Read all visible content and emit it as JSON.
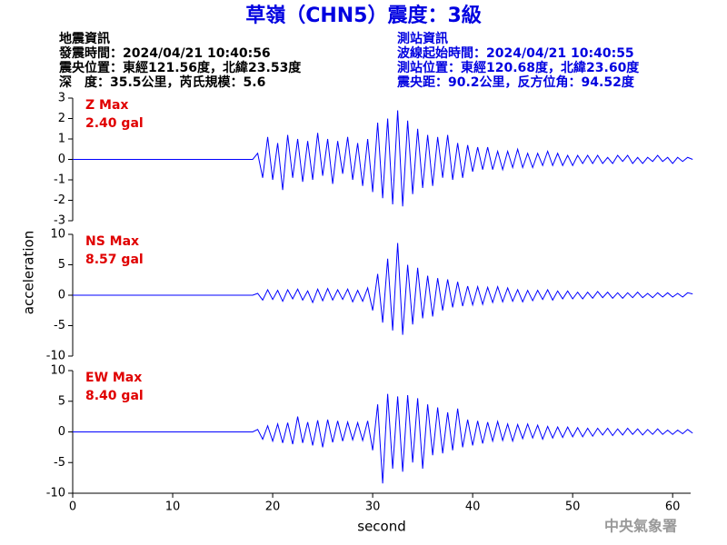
{
  "title": "草嶺（CHN5）震度：3級",
  "earthquake_info": [
    "地震資訊",
    "發震時間：2024/04/21 10:40:56",
    "震央位置：東經121.56度，北緯23.53度",
    "深　度：35.5公里，芮氏規模：5.6"
  ],
  "station_info": [
    "測站資訊",
    "波線起始時間：2024/04/21 10:40:55",
    "測站位置：東經120.68度，北緯23.60度",
    "震央距：90.2公里，反方位角：94.52度"
  ],
  "footer": "中央氣象署",
  "chart_data": [
    {
      "type": "line",
      "annotations": [
        "Z Max",
        "2.40 gal"
      ],
      "color": "#0000ff",
      "annotation_color": "#e00000",
      "xlim": [
        0,
        61.8
      ],
      "ylim": [
        -3,
        3
      ],
      "yticks": [
        -3,
        -2,
        -1,
        0,
        1,
        2,
        3
      ],
      "x": [
        0,
        18,
        18.5,
        19,
        19.5,
        20,
        20.5,
        21,
        21.5,
        22,
        22.5,
        23,
        23.5,
        24,
        24.5,
        25,
        25.5,
        26,
        26.5,
        27,
        27.5,
        28,
        28.5,
        29,
        29.5,
        30,
        30.5,
        31,
        31.5,
        32,
        32.5,
        33,
        33.5,
        34,
        34.5,
        35,
        35.5,
        36,
        36.5,
        37,
        37.5,
        38,
        38.5,
        39,
        39.5,
        40,
        40.5,
        41,
        41.5,
        42,
        42.5,
        43,
        43.5,
        44,
        44.5,
        45,
        45.5,
        46,
        46.5,
        47,
        47.5,
        48,
        48.5,
        49,
        49.5,
        50,
        50.5,
        51,
        51.5,
        52,
        52.5,
        53,
        53.5,
        54,
        54.5,
        55,
        55.5,
        56,
        56.5,
        57,
        57.5,
        58,
        58.5,
        59,
        59.5,
        60,
        60.5,
        61,
        61.5,
        62
      ],
      "values": [
        0,
        0,
        0.3,
        -0.9,
        1.1,
        -1.0,
        0.8,
        -1.5,
        1.2,
        -0.9,
        1.0,
        -1.1,
        0.9,
        -1.0,
        1.3,
        -0.8,
        1.0,
        -1.2,
        0.9,
        -0.7,
        1.1,
        -1.0,
        0.8,
        -1.3,
        1.0,
        -1.6,
        1.8,
        -1.9,
        2.0,
        -2.2,
        2.4,
        -2.3,
        1.9,
        -1.7,
        1.5,
        -1.4,
        1.2,
        -1.3,
        1.1,
        -0.9,
        1.2,
        -1.0,
        0.8,
        -0.9,
        0.7,
        -0.6,
        0.6,
        -0.5,
        0.6,
        -0.5,
        0.4,
        -0.5,
        0.4,
        -0.4,
        0.5,
        -0.4,
        0.3,
        -0.4,
        0.3,
        -0.3,
        0.4,
        -0.3,
        0.3,
        -0.3,
        0.2,
        -0.3,
        0.2,
        -0.2,
        0.2,
        -0.2,
        0.2,
        -0.2,
        0.1,
        -0.2,
        0.2,
        -0.1,
        0.2,
        -0.2,
        0.1,
        -0.2,
        0.1,
        -0.1,
        0.2,
        -0.1,
        0.1,
        -0.2,
        0.1,
        -0.1,
        0.1,
        0.0
      ]
    },
    {
      "type": "line",
      "annotations": [
        "NS Max",
        "8.57 gal"
      ],
      "color": "#0000ff",
      "annotation_color": "#e00000",
      "ylabel": "acceleration",
      "xlim": [
        0,
        61.8
      ],
      "ylim": [
        -10,
        10
      ],
      "yticks": [
        -10,
        -5,
        0,
        5,
        10
      ],
      "x": [
        0,
        18,
        18.5,
        19,
        19.5,
        20,
        20.5,
        21,
        21.5,
        22,
        22.5,
        23,
        23.5,
        24,
        24.5,
        25,
        25.5,
        26,
        26.5,
        27,
        27.5,
        28,
        28.5,
        29,
        29.5,
        30,
        30.5,
        31,
        31.5,
        32,
        32.5,
        33,
        33.5,
        34,
        34.5,
        35,
        35.5,
        36,
        36.5,
        37,
        37.5,
        38,
        38.5,
        39,
        39.5,
        40,
        40.5,
        41,
        41.5,
        42,
        42.5,
        43,
        43.5,
        44,
        44.5,
        45,
        45.5,
        46,
        46.5,
        47,
        47.5,
        48,
        48.5,
        49,
        49.5,
        50,
        50.5,
        51,
        51.5,
        52,
        52.5,
        53,
        53.5,
        54,
        54.5,
        55,
        55.5,
        56,
        56.5,
        57,
        57.5,
        58,
        58.5,
        59,
        59.5,
        60,
        60.5,
        61,
        61.5,
        62
      ],
      "values": [
        0,
        0,
        0.3,
        -0.8,
        0.9,
        -0.7,
        0.8,
        -1.0,
        0.9,
        -0.6,
        1.0,
        -0.8,
        0.7,
        -1.2,
        1.0,
        -0.9,
        1.1,
        -0.8,
        0.9,
        -0.7,
        1.0,
        -1.1,
        0.8,
        -1.0,
        1.2,
        -2.5,
        3.5,
        -4.5,
        6.0,
        -5.8,
        8.57,
        -6.5,
        5.0,
        -4.8,
        4.5,
        -3.8,
        3.2,
        -3.5,
        2.8,
        -2.5,
        2.6,
        -2.0,
        2.2,
        -1.8,
        1.5,
        -1.6,
        1.4,
        -1.5,
        1.3,
        -1.2,
        1.4,
        -1.1,
        1.2,
        -1.0,
        0.9,
        -1.1,
        0.8,
        -0.9,
        0.8,
        -0.7,
        0.9,
        -0.8,
        0.7,
        -0.6,
        0.7,
        -0.6,
        0.5,
        -0.6,
        0.5,
        -0.5,
        0.6,
        -0.4,
        0.5,
        -0.5,
        0.4,
        -0.5,
        0.4,
        -0.4,
        0.5,
        -0.4,
        0.3,
        -0.4,
        0.4,
        -0.3,
        0.4,
        -0.3,
        0.3,
        -0.3,
        0.4,
        0.2
      ]
    },
    {
      "type": "line",
      "annotations": [
        "EW Max",
        "8.40 gal"
      ],
      "color": "#0000ff",
      "annotation_color": "#e00000",
      "xlabel": "second",
      "xlim": [
        0,
        61.8
      ],
      "ylim": [
        -10,
        10
      ],
      "yticks": [
        -10,
        -5,
        0,
        5,
        10
      ],
      "xticks": [
        0,
        10,
        20,
        30,
        40,
        50,
        60
      ],
      "x": [
        0,
        18,
        18.5,
        19,
        19.5,
        20,
        20.5,
        21,
        21.5,
        22,
        22.5,
        23,
        23.5,
        24,
        24.5,
        25,
        25.5,
        26,
        26.5,
        27,
        27.5,
        28,
        28.5,
        29,
        29.5,
        30,
        30.5,
        31,
        31.5,
        32,
        32.5,
        33,
        33.5,
        34,
        34.5,
        35,
        35.5,
        36,
        36.5,
        37,
        37.5,
        38,
        38.5,
        39,
        39.5,
        40,
        40.5,
        41,
        41.5,
        42,
        42.5,
        43,
        43.5,
        44,
        44.5,
        45,
        45.5,
        46,
        46.5,
        47,
        47.5,
        48,
        48.5,
        49,
        49.5,
        50,
        50.5,
        51,
        51.5,
        52,
        52.5,
        53,
        53.5,
        54,
        54.5,
        55,
        55.5,
        56,
        56.5,
        57,
        57.5,
        58,
        58.5,
        59,
        59.5,
        60,
        60.5,
        61,
        61.5,
        62
      ],
      "values": [
        0,
        0,
        0.4,
        -1.2,
        1.0,
        -1.5,
        1.3,
        -1.8,
        1.5,
        -2.0,
        2.5,
        -1.8,
        1.6,
        -2.2,
        1.9,
        -2.5,
        2.0,
        -1.7,
        1.8,
        -1.5,
        1.6,
        -1.3,
        1.5,
        -1.4,
        1.8,
        -3.0,
        4.5,
        -8.4,
        6.2,
        -6.0,
        5.8,
        -6.5,
        6.0,
        -5.0,
        5.5,
        -6.0,
        4.5,
        -3.8,
        4.0,
        -3.5,
        3.2,
        -3.0,
        3.8,
        -2.5,
        2.0,
        -2.2,
        1.8,
        -1.9,
        1.6,
        -1.5,
        1.7,
        -1.4,
        1.3,
        -1.5,
        1.2,
        -1.1,
        1.3,
        -1.0,
        1.1,
        -1.2,
        0.9,
        -1.0,
        0.8,
        -0.9,
        0.8,
        -0.8,
        0.7,
        -0.8,
        0.6,
        -0.7,
        0.6,
        -0.5,
        0.6,
        -0.6,
        0.5,
        -0.5,
        0.6,
        -0.4,
        0.5,
        -0.5,
        0.4,
        -0.4,
        0.5,
        -0.4,
        0.3,
        -0.4,
        0.3,
        -0.3,
        0.4,
        -0.2
      ]
    }
  ]
}
